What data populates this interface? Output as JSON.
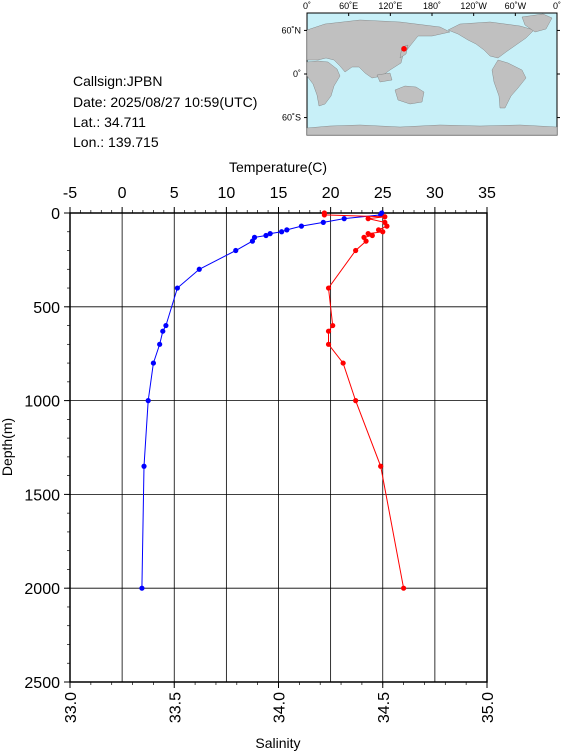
{
  "info": {
    "callsign": "Callsign:JPBN",
    "date": "Date:  2025/08/27 10:59(UTC)",
    "lat": "Lat.:  34.711",
    "lon": "Lon.:  139.715"
  },
  "map": {
    "lon_ticks": [
      "0˚",
      "60˚E",
      "120˚E",
      "180˚",
      "120˚W",
      "60˚W",
      "0˚"
    ],
    "lat_ticks": [
      "60˚N",
      "0˚",
      "60˚S"
    ],
    "station": {
      "lat": 34.711,
      "lon": 139.715
    },
    "colors": {
      "ocean": "#c8f0f8",
      "land": "#c0c0c0",
      "marker": "#ff0000"
    }
  },
  "chart_data": {
    "type": "line",
    "ylabel": "Depth(m)",
    "y_ticks": [
      "0",
      "500",
      "1000",
      "1500",
      "2000",
      "2500"
    ],
    "ylim": [
      2500,
      0
    ],
    "top_axis": {
      "label": "Temperature(C)",
      "ticks": [
        "-5",
        "0",
        "5",
        "10",
        "15",
        "20",
        "25",
        "30",
        "35"
      ],
      "range": [
        -5,
        35
      ]
    },
    "bottom_axis": {
      "label": "Salinity",
      "ticks": [
        "33.0",
        "33.5",
        "34.0",
        "34.5",
        "35.0"
      ],
      "range": [
        33.0,
        35.0
      ]
    },
    "grid": true,
    "series": [
      {
        "axis": "top",
        "color": "#0000ff",
        "depth": [
          0,
          10,
          30,
          50,
          70,
          90,
          100,
          110,
          120,
          130,
          150,
          200,
          300,
          400,
          600,
          630,
          700,
          800,
          1000,
          1350,
          2000
        ],
        "values": [
          24.9,
          24.8,
          21.3,
          19.3,
          17.2,
          15.8,
          15.3,
          14.2,
          13.8,
          12.7,
          12.5,
          10.9,
          7.4,
          5.3,
          4.2,
          3.9,
          3.6,
          3.0,
          2.5,
          2.1,
          1.9
        ]
      },
      {
        "axis": "bottom",
        "color": "#ff0000",
        "depth": [
          0,
          10,
          20,
          30,
          50,
          70,
          90,
          100,
          110,
          120,
          130,
          150,
          200,
          400,
          600,
          630,
          700,
          800,
          1000,
          1350,
          2000
        ],
        "values": [
          34.22,
          34.22,
          34.51,
          34.43,
          34.51,
          34.52,
          34.48,
          34.5,
          34.43,
          34.45,
          34.41,
          34.42,
          34.37,
          34.24,
          34.26,
          34.24,
          34.24,
          34.31,
          34.37,
          34.49,
          34.6
        ]
      }
    ]
  }
}
